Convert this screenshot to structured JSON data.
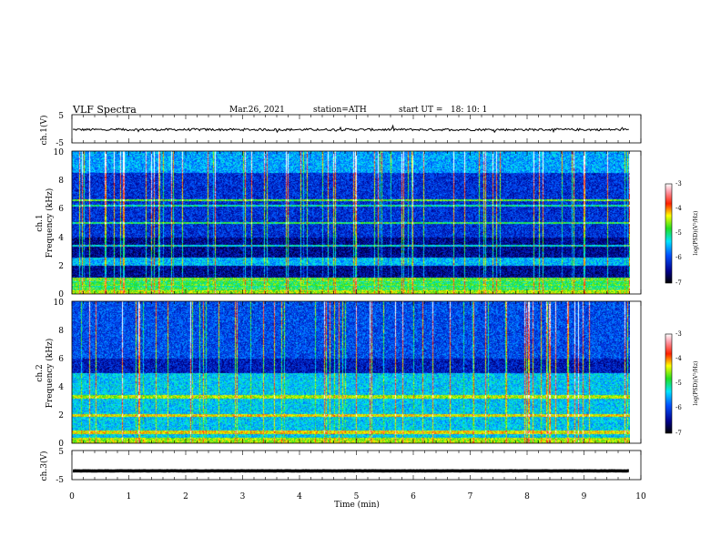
{
  "header": {
    "title": "VLF Spectra",
    "date": "Mar.26, 2021",
    "station": "station=ATH",
    "start": "start UT =   18: 10: 1"
  },
  "chart_data": [
    {
      "type": "line",
      "panel": "ch1-waveform",
      "ylabel": "ch.1(V)",
      "yticks": [
        "5",
        "-5"
      ],
      "ylim": [
        -5,
        5
      ],
      "xlim": [
        0,
        10
      ],
      "signal": {
        "mean": -0.3,
        "amplitude": 0.4,
        "duration_min": 9.8
      }
    },
    {
      "type": "heatmap",
      "panel": "ch1-spectrogram",
      "ylabel": "ch.1",
      "ylabel2": "Frequency (kHz)",
      "yticks": [
        "0",
        "2",
        "4",
        "6",
        "8",
        "10"
      ],
      "ylim": [
        0,
        10
      ],
      "xlim": [
        0,
        10
      ],
      "duration_min": 9.8,
      "colorbar": {
        "label": "log(PSD)(V²/Hz)",
        "ticks": [
          "-3",
          "-4",
          "-5",
          "-6",
          "-7"
        ],
        "range": [
          -7,
          -3
        ]
      }
    },
    {
      "type": "heatmap",
      "panel": "ch2-spectrogram",
      "ylabel": "ch.2",
      "ylabel2": "Frequency (kHz)",
      "yticks": [
        "0",
        "2",
        "4",
        "6",
        "8",
        "10"
      ],
      "ylim": [
        0,
        10
      ],
      "xlim": [
        0,
        10
      ],
      "duration_min": 9.8,
      "colorbar": {
        "label": "log(PSD)(V²/Hz)",
        "ticks": [
          "-3",
          "-4",
          "-5",
          "-6",
          "-7"
        ],
        "range": [
          -7,
          -3
        ]
      }
    },
    {
      "type": "line",
      "panel": "ch3-waveform",
      "ylabel": "ch.3(V)",
      "yticks": [
        "5",
        "-5"
      ],
      "ylim": [
        -5,
        5
      ],
      "xlim": [
        0,
        10
      ],
      "signal": {
        "mean": -2.0,
        "amplitude": 0.1,
        "duration_min": 9.8
      }
    }
  ],
  "xaxis": {
    "label": "Time (min)",
    "ticks": [
      "0",
      "1",
      "2",
      "3",
      "4",
      "5",
      "6",
      "7",
      "8",
      "9",
      "10"
    ]
  }
}
